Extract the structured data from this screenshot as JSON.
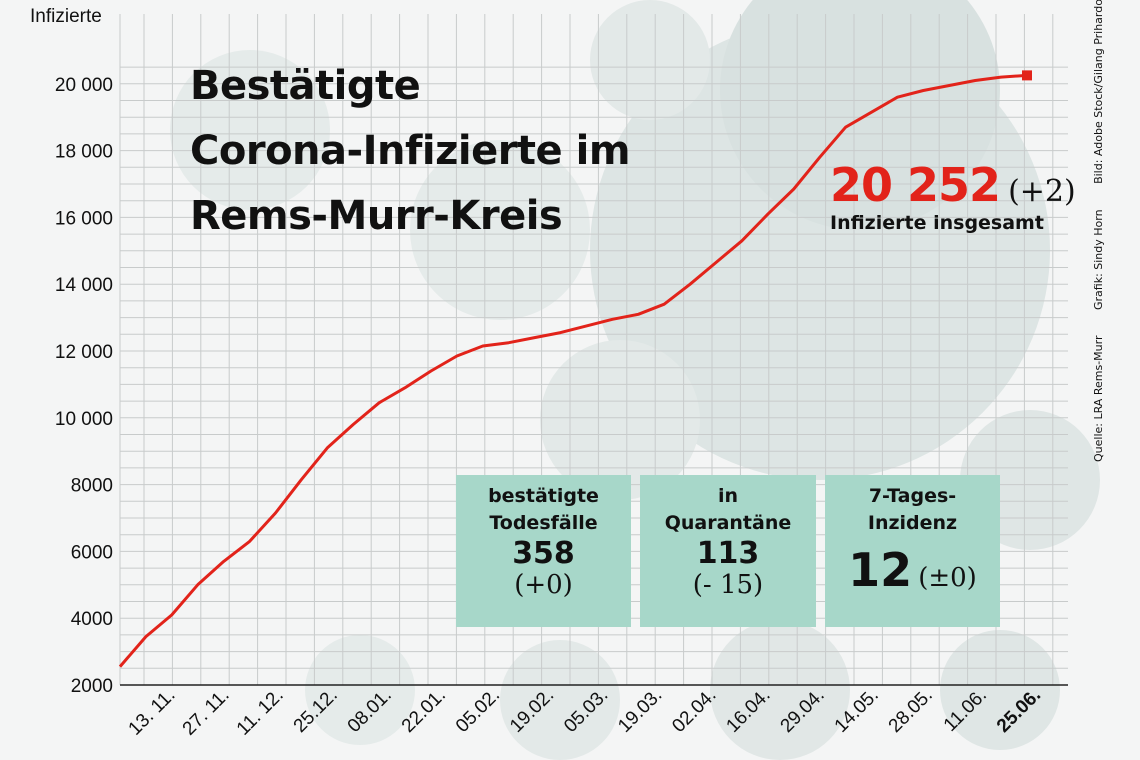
{
  "title_lines": [
    "Bestätigte",
    "Corona-Infizierte im",
    "Rems-Murr-Kreis"
  ],
  "callout": {
    "value": "20 252",
    "change": "(+2)",
    "label": "Infizierte insgesamt"
  },
  "boxes": [
    {
      "label_lines": [
        "bestätigte",
        "Todesfälle"
      ],
      "value": "358",
      "change": "(+0)"
    },
    {
      "label_lines": [
        "in",
        "Quarantäne"
      ],
      "value": "113",
      "change": "(- 15)"
    },
    {
      "label_lines": [
        "7-Tages-",
        "Inzidenz"
      ],
      "value": "12",
      "change": "(±0)"
    }
  ],
  "credits": {
    "source": "Quelle: LRA Rems-Murr",
    "graphic": "Grafik: Sindy Horn",
    "image": "Bild: Adobe Stock/Gilang Prihardono"
  },
  "colors": {
    "line": "#e2231a",
    "box": "#a7d7c9",
    "grid": "#c8cbcb",
    "axis": "#222222",
    "background": "#f4f5f5"
  },
  "chart_data": {
    "type": "line",
    "ylabel": "Infizierte",
    "ylim": [
      2000,
      21000
    ],
    "yticks": [
      2000,
      4000,
      6000,
      8000,
      10000,
      12000,
      14000,
      16000,
      18000,
      20000
    ],
    "ytick_labels": [
      "2000",
      "4000",
      "6000",
      "8000",
      "10 000",
      "12 000",
      "14 000",
      "16 000",
      "18 000",
      "20 000"
    ],
    "xtick_labels": [
      "13. 11.",
      "27. 11.",
      "11. 12.",
      "25.12.",
      "08.01.",
      "22.01.",
      "05.02.",
      "19.02.",
      "05.03.",
      "19.03.",
      "02.04.",
      "16.04.",
      "29.04.",
      "14.05.",
      "28.05.",
      "11.06.",
      "25.06."
    ],
    "grid": true,
    "series": [
      {
        "values": [
          2550,
          3450,
          4100,
          5000,
          5700,
          6300,
          7150,
          8150,
          9100,
          9800,
          10450,
          10900,
          11400,
          11850,
          12150,
          12250,
          12400,
          12550,
          12750,
          12950,
          13100,
          13400,
          14000,
          14650,
          15300,
          16100,
          16850,
          17800,
          18700,
          19150,
          19600,
          19800,
          19950,
          20100,
          20200,
          20252
        ]
      }
    ]
  }
}
